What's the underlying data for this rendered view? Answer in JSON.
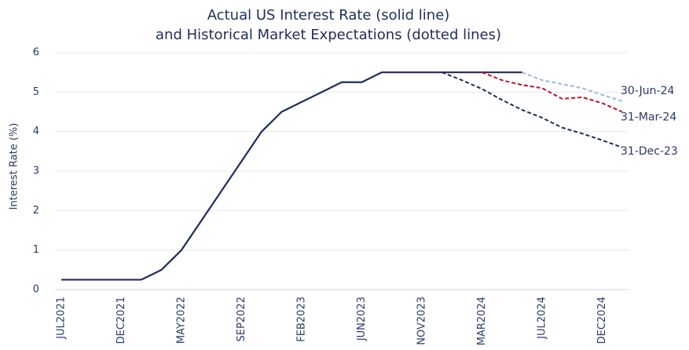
{
  "chart_data": {
    "type": "line",
    "title": [
      "Actual US Interest Rate (solid line)",
      "and Historical Market Expectations (dotted lines)"
    ],
    "y_label": "Interest Rate (%)",
    "categories": [
      "JUL2021",
      null,
      null,
      "DEC2021",
      null,
      null,
      "MAY2022",
      null,
      null,
      "SEP2022",
      null,
      null,
      "FEB2023",
      null,
      null,
      "JUN2023",
      null,
      null,
      "NOV2023",
      null,
      null,
      "MAR2024",
      null,
      null,
      "JUL2024",
      null,
      null,
      "DEC2024",
      null
    ],
    "ylim": [
      0,
      6
    ],
    "yticks": [
      0,
      1,
      2,
      3,
      4,
      5,
      6
    ],
    "grid": true,
    "series": [
      {
        "color": "#1f2d5a",
        "dashed": false,
        "values": [
          0.25,
          0.25,
          0.25,
          0.25,
          0.25,
          0.5,
          1.0,
          1.75,
          2.5,
          3.25,
          4.0,
          4.5,
          4.75,
          5.0,
          5.25,
          5.25,
          5.5,
          5.5,
          5.5,
          5.5,
          5.5,
          5.5,
          5.5,
          5.5,
          null,
          null,
          null,
          null,
          null
        ]
      },
      {
        "name": "31-Dec-23",
        "color": "#1f2d5a",
        "dashed": true,
        "values": [
          null,
          null,
          null,
          null,
          null,
          null,
          null,
          null,
          null,
          null,
          null,
          null,
          null,
          null,
          null,
          null,
          null,
          null,
          null,
          5.5,
          5.3,
          5.08,
          4.8,
          4.55,
          4.35,
          4.1,
          3.95,
          3.78,
          3.6
        ]
      },
      {
        "name": "31-Mar-24",
        "color": "#c0102a",
        "dashed": true,
        "values": [
          null,
          null,
          null,
          null,
          null,
          null,
          null,
          null,
          null,
          null,
          null,
          null,
          null,
          null,
          null,
          null,
          null,
          null,
          null,
          null,
          null,
          5.5,
          5.3,
          5.18,
          5.1,
          4.83,
          4.87,
          4.72,
          4.5
        ]
      },
      {
        "name": "30-Jun-24",
        "color": "#9db8d9",
        "dashed": true,
        "values": [
          null,
          null,
          null,
          null,
          null,
          null,
          null,
          null,
          null,
          null,
          null,
          null,
          null,
          null,
          null,
          null,
          null,
          null,
          null,
          null,
          null,
          null,
          null,
          5.5,
          5.3,
          5.2,
          5.1,
          4.93,
          4.77
        ]
      }
    ]
  }
}
